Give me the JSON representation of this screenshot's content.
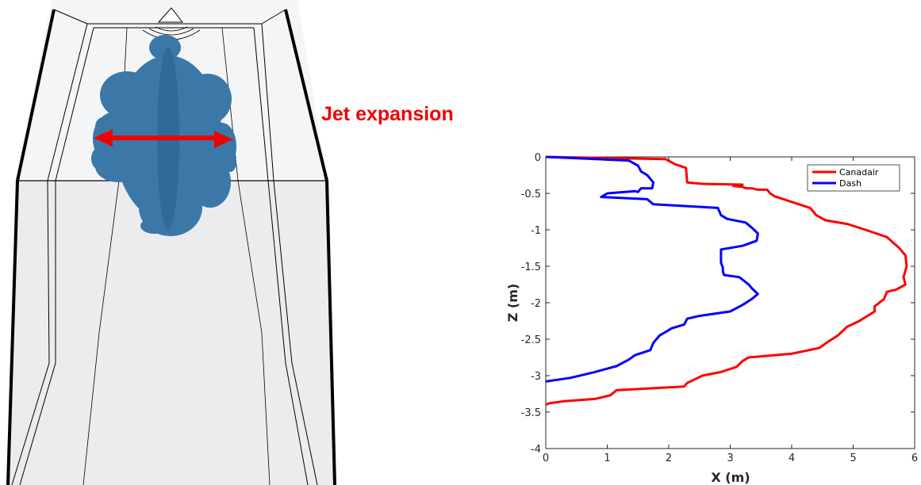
{
  "annotation": {
    "label": "Jet expansion",
    "color": "#f00000"
  },
  "scene": {
    "jet_color": "#3b78a8",
    "wall_color": "#000000"
  },
  "chart_data": {
    "type": "line",
    "title": "",
    "xlabel": "X (m)",
    "ylabel": "Z (m)",
    "xlim": [
      0,
      6
    ],
    "ylim": [
      -4,
      0
    ],
    "xticks": [
      0,
      1,
      2,
      3,
      4,
      5,
      6
    ],
    "yticks": [
      0,
      -0.5,
      -1,
      -1.5,
      -2,
      -2.5,
      -3,
      -3.5,
      -4
    ],
    "xtick_labels": [
      "0",
      "1",
      "2",
      "3",
      "4",
      "5",
      "6"
    ],
    "ytick_labels": [
      "0",
      "-0.5",
      "-1",
      "-1.5",
      "-2",
      "-2.5",
      "-3",
      "-3.5",
      "-4"
    ],
    "legend_position": "top-right",
    "series": [
      {
        "name": "Canadair",
        "color": "#ff0000",
        "points": [
          [
            0,
            0
          ],
          [
            1.95,
            -0.03
          ],
          [
            2.1,
            -0.1
          ],
          [
            2.28,
            -0.15
          ],
          [
            2.3,
            -0.35
          ],
          [
            2.55,
            -0.37
          ],
          [
            3.2,
            -0.38
          ],
          [
            3.05,
            -0.4
          ],
          [
            3.2,
            -0.41
          ],
          [
            3.25,
            -0.43
          ],
          [
            3.35,
            -0.43
          ],
          [
            3.45,
            -0.45
          ],
          [
            3.6,
            -0.45
          ],
          [
            3.65,
            -0.5
          ],
          [
            3.72,
            -0.54
          ],
          [
            4.3,
            -0.7
          ],
          [
            4.4,
            -0.8
          ],
          [
            4.55,
            -0.87
          ],
          [
            4.9,
            -0.92
          ],
          [
            5.2,
            -1.0
          ],
          [
            5.55,
            -1.1
          ],
          [
            5.75,
            -1.25
          ],
          [
            5.85,
            -1.35
          ],
          [
            5.87,
            -1.5
          ],
          [
            5.82,
            -1.65
          ],
          [
            5.85,
            -1.75
          ],
          [
            5.7,
            -1.82
          ],
          [
            5.55,
            -1.85
          ],
          [
            5.5,
            -1.95
          ],
          [
            5.35,
            -2.05
          ],
          [
            5.35,
            -2.12
          ],
          [
            5.1,
            -2.25
          ],
          [
            4.9,
            -2.33
          ],
          [
            4.75,
            -2.45
          ],
          [
            4.6,
            -2.53
          ],
          [
            4.45,
            -2.62
          ],
          [
            4.0,
            -2.7
          ],
          [
            3.3,
            -2.75
          ],
          [
            3.2,
            -2.8
          ],
          [
            3.1,
            -2.88
          ],
          [
            2.85,
            -2.95
          ],
          [
            2.55,
            -3.0
          ],
          [
            2.3,
            -3.1
          ],
          [
            2.25,
            -3.15
          ],
          [
            1.15,
            -3.2
          ],
          [
            1.05,
            -3.27
          ],
          [
            0.8,
            -3.32
          ],
          [
            0.3,
            -3.35
          ],
          [
            0.05,
            -3.38
          ],
          [
            0,
            -3.4
          ]
        ]
      },
      {
        "name": "Dash",
        "color": "#0000ff",
        "points": [
          [
            0,
            0
          ],
          [
            1.35,
            -0.05
          ],
          [
            1.5,
            -0.12
          ],
          [
            1.55,
            -0.2
          ],
          [
            1.65,
            -0.25
          ],
          [
            1.75,
            -0.35
          ],
          [
            1.73,
            -0.43
          ],
          [
            1.55,
            -0.43
          ],
          [
            1.5,
            -0.48
          ],
          [
            1.45,
            -0.47
          ],
          [
            1.0,
            -0.5
          ],
          [
            0.9,
            -0.55
          ],
          [
            1.65,
            -0.58
          ],
          [
            1.75,
            -0.65
          ],
          [
            2.8,
            -0.7
          ],
          [
            2.85,
            -0.8
          ],
          [
            2.95,
            -0.85
          ],
          [
            3.25,
            -0.9
          ],
          [
            3.35,
            -0.97
          ],
          [
            3.45,
            -1.05
          ],
          [
            3.43,
            -1.15
          ],
          [
            3.2,
            -1.22
          ],
          [
            2.85,
            -1.27
          ],
          [
            2.85,
            -1.45
          ],
          [
            2.88,
            -1.52
          ],
          [
            2.88,
            -1.57
          ],
          [
            2.9,
            -1.62
          ],
          [
            3.15,
            -1.65
          ],
          [
            3.3,
            -1.75
          ],
          [
            3.35,
            -1.8
          ],
          [
            3.45,
            -1.88
          ],
          [
            3.35,
            -1.95
          ],
          [
            3.2,
            -2.03
          ],
          [
            3.0,
            -2.12
          ],
          [
            2.5,
            -2.18
          ],
          [
            2.3,
            -2.22
          ],
          [
            2.25,
            -2.3
          ],
          [
            2.05,
            -2.35
          ],
          [
            1.85,
            -2.45
          ],
          [
            1.75,
            -2.55
          ],
          [
            1.7,
            -2.65
          ],
          [
            1.45,
            -2.72
          ],
          [
            1.35,
            -2.78
          ],
          [
            1.15,
            -2.87
          ],
          [
            0.8,
            -2.95
          ],
          [
            0.4,
            -3.03
          ],
          [
            0,
            -3.08
          ]
        ]
      }
    ]
  }
}
